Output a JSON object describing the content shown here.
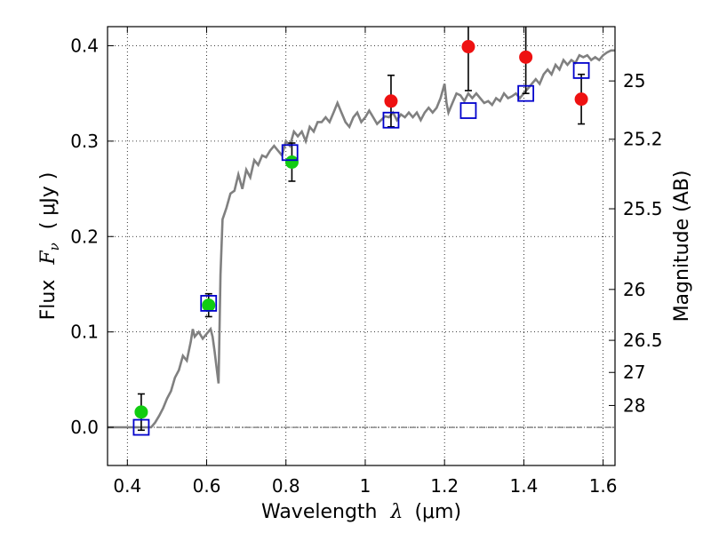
{
  "chart_data": {
    "type": "scatter",
    "xlabel_prefix": "Wavelength",
    "xlabel_symbol": "λ",
    "xlabel_unit": "(μm)",
    "ylabel_prefix": "Flux",
    "ylabel_symbol": "F",
    "ylabel_subscript": "ν",
    "ylabel_unit": "( μJy )",
    "y2label": "Magnitude (AB)",
    "xlim": [
      0.35,
      1.63
    ],
    "ylim": [
      -0.04,
      0.42
    ],
    "x_ticks": [
      0.4,
      0.6,
      0.8,
      1.0,
      1.2,
      1.4,
      1.6
    ],
    "x_tick_labels": [
      "0.4",
      "0.6",
      "0.8",
      "1",
      "1.2",
      "1.4",
      "1.6"
    ],
    "y_ticks": [
      0.0,
      0.1,
      0.2,
      0.3,
      0.4
    ],
    "y_tick_labels": [
      "0.0",
      "0.1",
      "0.2",
      "0.3",
      "0.4"
    ],
    "mag_ticks": [
      {
        "mag": 25,
        "label": "25"
      },
      {
        "mag": 25.2,
        "label": "25.2"
      },
      {
        "mag": 25.5,
        "label": "25.5"
      },
      {
        "mag": 26,
        "label": "26"
      },
      {
        "mag": 26.5,
        "label": "26.5"
      },
      {
        "mag": 27,
        "label": "27"
      },
      {
        "mag": 28,
        "label": "28"
      }
    ],
    "grid": true,
    "zero_line": true,
    "colors": {
      "spectrum": "#808080",
      "model": "#0000cc",
      "detection": "#11cc11",
      "measurement": "#ee1111",
      "errorbar": "#000000",
      "grid": "#000000"
    },
    "spectrum": {
      "name": "model spectrum",
      "points": [
        [
          0.35,
          0.0
        ],
        [
          0.45,
          0.0
        ],
        [
          0.46,
          0.0
        ],
        [
          0.47,
          0.005
        ],
        [
          0.48,
          0.012
        ],
        [
          0.49,
          0.02
        ],
        [
          0.5,
          0.03
        ],
        [
          0.51,
          0.038
        ],
        [
          0.52,
          0.052
        ],
        [
          0.53,
          0.06
        ],
        [
          0.54,
          0.075
        ],
        [
          0.55,
          0.07
        ],
        [
          0.56,
          0.09
        ],
        [
          0.565,
          0.103
        ],
        [
          0.57,
          0.095
        ],
        [
          0.58,
          0.1
        ],
        [
          0.59,
          0.093
        ],
        [
          0.6,
          0.098
        ],
        [
          0.61,
          0.103
        ],
        [
          0.615,
          0.095
        ],
        [
          0.62,
          0.08
        ],
        [
          0.63,
          0.046
        ],
        [
          0.635,
          0.16
        ],
        [
          0.64,
          0.218
        ],
        [
          0.65,
          0.23
        ],
        [
          0.66,
          0.245
        ],
        [
          0.67,
          0.248
        ],
        [
          0.68,
          0.265
        ],
        [
          0.69,
          0.25
        ],
        [
          0.7,
          0.27
        ],
        [
          0.71,
          0.262
        ],
        [
          0.72,
          0.28
        ],
        [
          0.73,
          0.275
        ],
        [
          0.74,
          0.285
        ],
        [
          0.75,
          0.283
        ],
        [
          0.76,
          0.29
        ],
        [
          0.77,
          0.295
        ],
        [
          0.78,
          0.29
        ],
        [
          0.79,
          0.285
        ],
        [
          0.8,
          0.3
        ],
        [
          0.81,
          0.295
        ],
        [
          0.82,
          0.31
        ],
        [
          0.83,
          0.305
        ],
        [
          0.84,
          0.31
        ],
        [
          0.85,
          0.3
        ],
        [
          0.86,
          0.315
        ],
        [
          0.87,
          0.31
        ],
        [
          0.88,
          0.32
        ],
        [
          0.89,
          0.32
        ],
        [
          0.9,
          0.325
        ],
        [
          0.91,
          0.32
        ],
        [
          0.92,
          0.33
        ],
        [
          0.93,
          0.34
        ],
        [
          0.94,
          0.33
        ],
        [
          0.95,
          0.32
        ],
        [
          0.96,
          0.315
        ],
        [
          0.97,
          0.325
        ],
        [
          0.98,
          0.33
        ],
        [
          0.99,
          0.32
        ],
        [
          1.0,
          0.325
        ],
        [
          1.01,
          0.332
        ],
        [
          1.02,
          0.325
        ],
        [
          1.03,
          0.318
        ],
        [
          1.04,
          0.322
        ],
        [
          1.05,
          0.326
        ],
        [
          1.06,
          0.325
        ],
        [
          1.07,
          0.33
        ],
        [
          1.08,
          0.322
        ],
        [
          1.09,
          0.328
        ],
        [
          1.1,
          0.325
        ],
        [
          1.11,
          0.33
        ],
        [
          1.12,
          0.325
        ],
        [
          1.13,
          0.33
        ],
        [
          1.14,
          0.322
        ],
        [
          1.15,
          0.33
        ],
        [
          1.16,
          0.335
        ],
        [
          1.17,
          0.33
        ],
        [
          1.18,
          0.335
        ],
        [
          1.19,
          0.345
        ],
        [
          1.2,
          0.36
        ],
        [
          1.205,
          0.34
        ],
        [
          1.21,
          0.33
        ],
        [
          1.22,
          0.34
        ],
        [
          1.23,
          0.35
        ],
        [
          1.24,
          0.348
        ],
        [
          1.25,
          0.342
        ],
        [
          1.26,
          0.35
        ],
        [
          1.27,
          0.345
        ],
        [
          1.28,
          0.35
        ],
        [
          1.29,
          0.345
        ],
        [
          1.3,
          0.34
        ],
        [
          1.31,
          0.342
        ],
        [
          1.32,
          0.338
        ],
        [
          1.33,
          0.345
        ],
        [
          1.34,
          0.342
        ],
        [
          1.35,
          0.35
        ],
        [
          1.36,
          0.345
        ],
        [
          1.37,
          0.347
        ],
        [
          1.38,
          0.35
        ],
        [
          1.39,
          0.345
        ],
        [
          1.4,
          0.35
        ],
        [
          1.41,
          0.355
        ],
        [
          1.42,
          0.36
        ],
        [
          1.43,
          0.365
        ],
        [
          1.44,
          0.36
        ],
        [
          1.45,
          0.37
        ],
        [
          1.46,
          0.375
        ],
        [
          1.47,
          0.37
        ],
        [
          1.48,
          0.38
        ],
        [
          1.49,
          0.375
        ],
        [
          1.5,
          0.385
        ],
        [
          1.51,
          0.38
        ],
        [
          1.52,
          0.385
        ],
        [
          1.53,
          0.382
        ],
        [
          1.54,
          0.39
        ],
        [
          1.55,
          0.388
        ],
        [
          1.56,
          0.39
        ],
        [
          1.57,
          0.385
        ],
        [
          1.58,
          0.388
        ],
        [
          1.59,
          0.385
        ],
        [
          1.6,
          0.39
        ],
        [
          1.61,
          0.393
        ],
        [
          1.62,
          0.395
        ],
        [
          1.63,
          0.395
        ]
      ]
    },
    "model_points": {
      "name": "model photometry",
      "x": [
        0.435,
        0.605,
        0.81,
        1.065,
        1.26,
        1.405,
        1.545
      ],
      "y": [
        0.0,
        0.13,
        0.288,
        0.322,
        0.332,
        0.35,
        0.374
      ]
    },
    "detections": {
      "name": "detections",
      "x": [
        0.435,
        0.605,
        0.815
      ],
      "y": [
        0.016,
        0.128,
        0.278
      ],
      "err": [
        0.019,
        0.012,
        0.02
      ]
    },
    "measurements": {
      "name": "measurements",
      "x": [
        1.065,
        1.26,
        1.405,
        1.545
      ],
      "y": [
        0.342,
        0.399,
        0.388,
        0.344
      ],
      "err": [
        0.027,
        0.046,
        0.038,
        0.026
      ]
    }
  }
}
